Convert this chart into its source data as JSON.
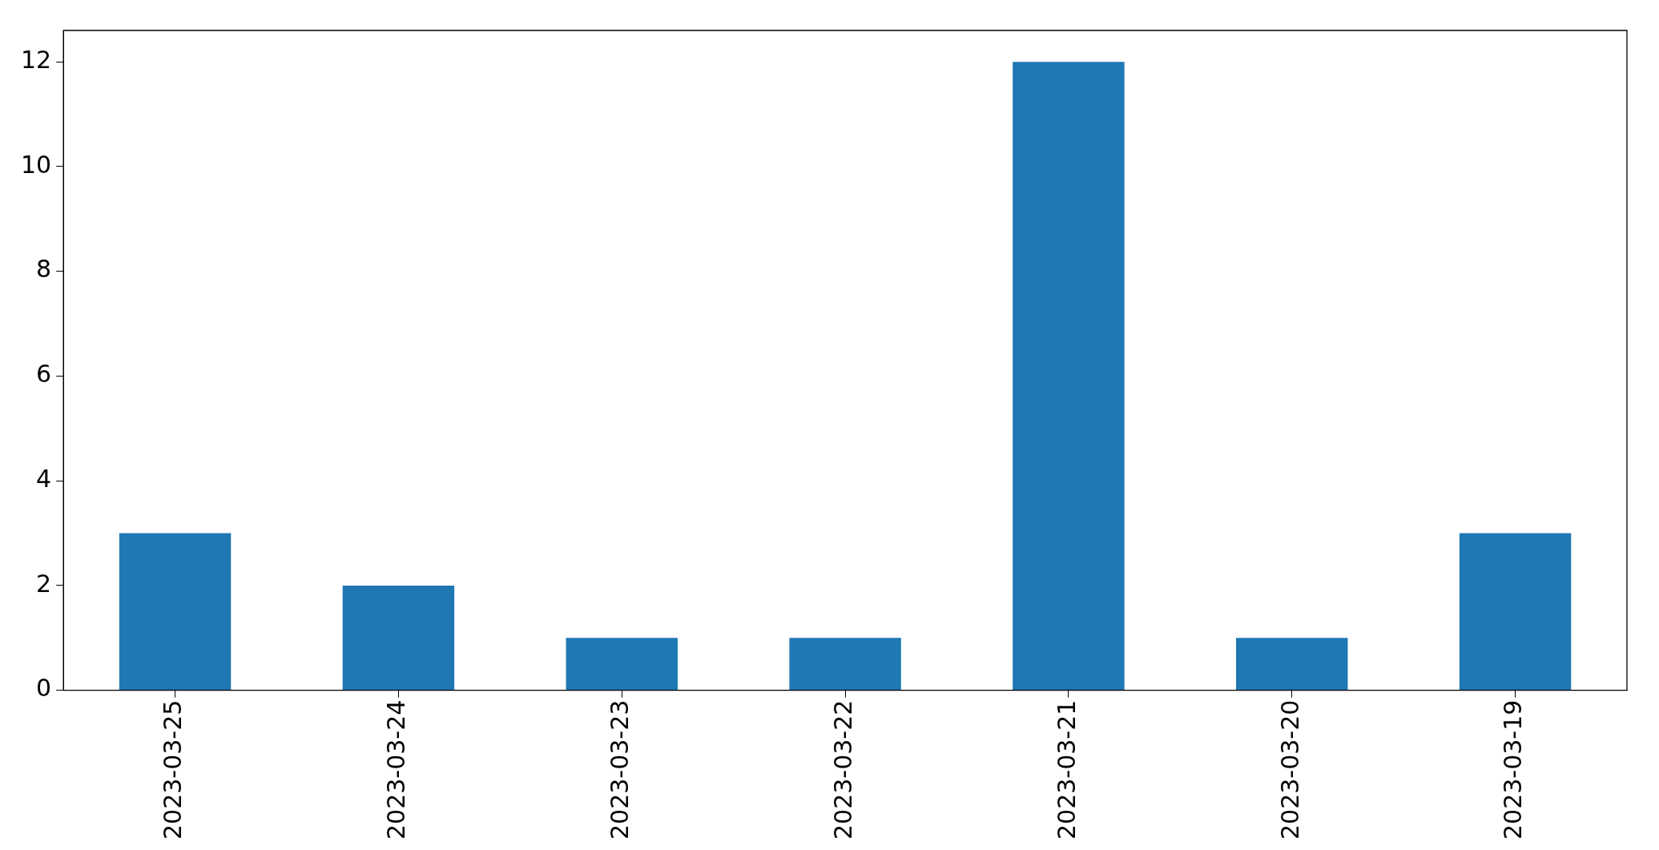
{
  "chart_data": {
    "type": "bar",
    "categories": [
      "2023-03-25",
      "2023-03-24",
      "2023-03-23",
      "2023-03-22",
      "2023-03-21",
      "2023-03-20",
      "2023-03-19"
    ],
    "values": [
      3,
      2,
      1,
      1,
      12,
      1,
      3
    ],
    "color": "#1f77b4",
    "ylim": [
      0,
      12.6
    ],
    "yticks": [
      0,
      2,
      4,
      6,
      8,
      10,
      12
    ]
  }
}
